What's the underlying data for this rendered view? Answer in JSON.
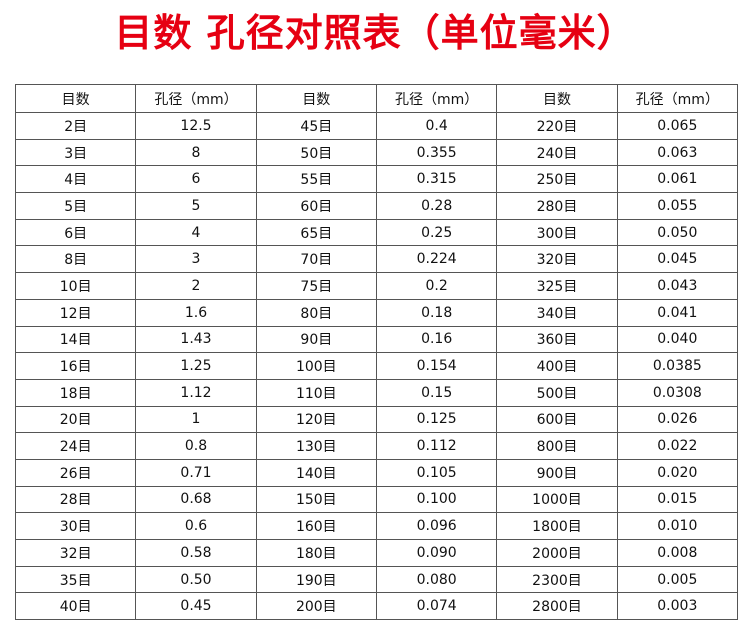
{
  "title": "目数 孔径对照表（单位毫米）",
  "headers": [
    "目数",
    "孔径（mm）",
    "目数",
    "孔径（mm）",
    "目数",
    "孔径（mm）"
  ],
  "rows": [
    [
      "2目",
      "12.5",
      "45目",
      "0.4",
      "220目",
      "0.065"
    ],
    [
      "3目",
      "8",
      "50目",
      "0.355",
      "240目",
      "0.063"
    ],
    [
      "4目",
      "6",
      "55目",
      "0.315",
      "250目",
      "0.061"
    ],
    [
      "5目",
      "5",
      "60目",
      "0.28",
      "280目",
      "0.055"
    ],
    [
      "6目",
      "4",
      "65目",
      "0.25",
      "300目",
      "0.050"
    ],
    [
      "8目",
      "3",
      "70目",
      "0.224",
      "320目",
      "0.045"
    ],
    [
      "10目",
      "2",
      "75目",
      "0.2",
      "325目",
      "0.043"
    ],
    [
      "12目",
      "1.6",
      "80目",
      "0.18",
      "340目",
      "0.041"
    ],
    [
      "14目",
      "1.43",
      "90目",
      "0.16",
      "360目",
      "0.040"
    ],
    [
      "16目",
      "1.25",
      "100目",
      "0.154",
      "400目",
      "0.0385"
    ],
    [
      "18目",
      "1.12",
      "110目",
      "0.15",
      "500目",
      "0.0308"
    ],
    [
      "20目",
      "1",
      "120目",
      "0.125",
      "600目",
      "0.026"
    ],
    [
      "24目",
      "0.8",
      "130目",
      "0.112",
      "800目",
      "0.022"
    ],
    [
      "26目",
      "0.71",
      "140目",
      "0.105",
      "900目",
      "0.020"
    ],
    [
      "28目",
      "0.68",
      "150目",
      "0.100",
      "1000目",
      "0.015"
    ],
    [
      "30目",
      "0.6",
      "160目",
      "0.096",
      "1800目",
      "0.010"
    ],
    [
      "32目",
      "0.58",
      "180目",
      "0.090",
      "2000目",
      "0.008"
    ],
    [
      "35目",
      "0.50",
      "190目",
      "0.080",
      "2300目",
      "0.005"
    ],
    [
      "40目",
      "0.45",
      "200目",
      "0.074",
      "2800目",
      "0.003"
    ]
  ]
}
